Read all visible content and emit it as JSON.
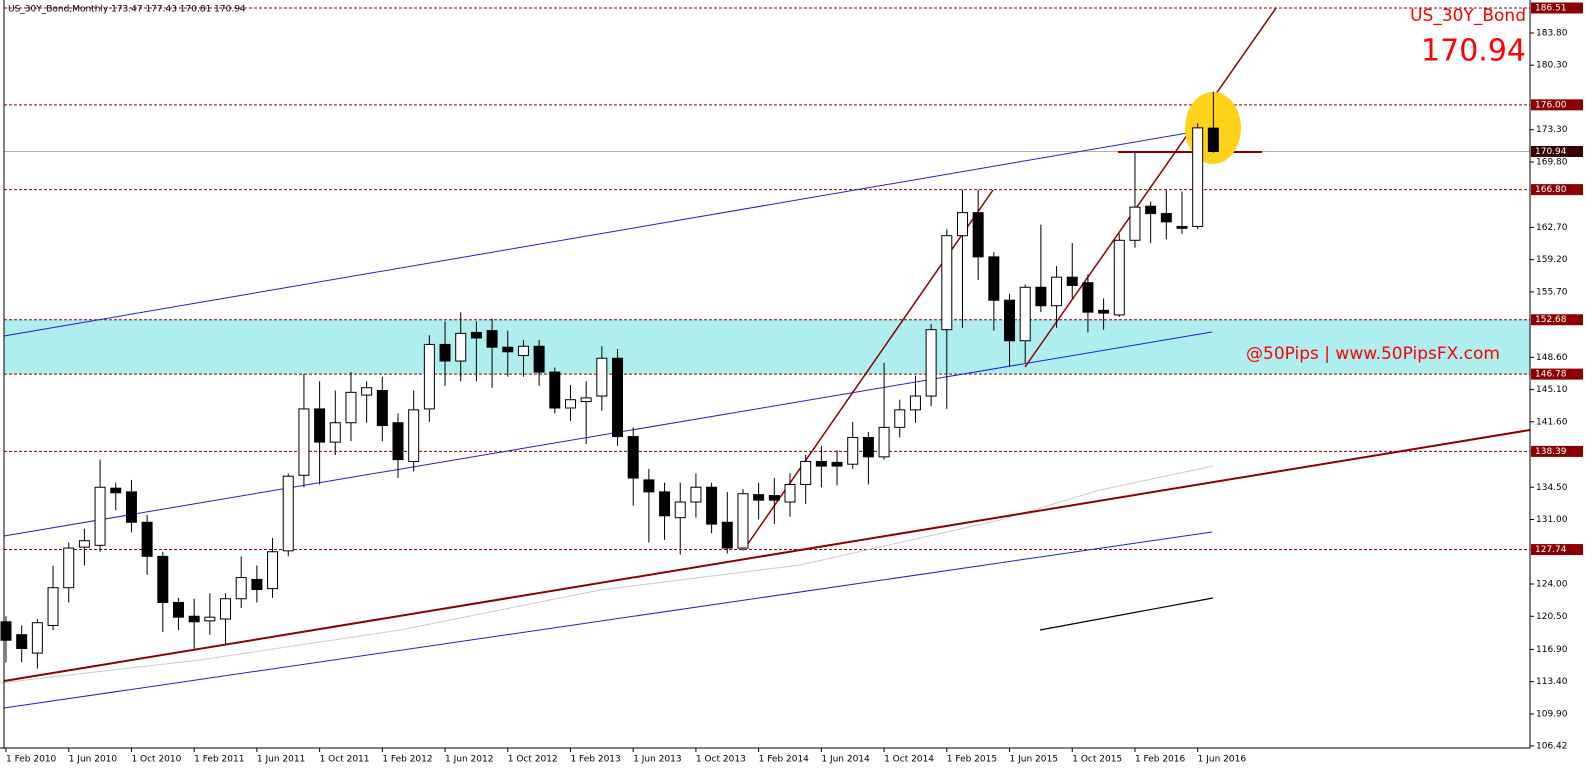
{
  "chart_data": {
    "type": "candlestick",
    "header": "US_30Y_Bond,Monthly  173.47 177.43 170.81 170.94",
    "title": "US_30Y_Bond",
    "last_price": 170.94,
    "annotation": "@50Pips | www.50PipsFX.com",
    "categories": [
      "1 Feb 2010",
      null,
      null,
      null,
      "1 Jun 2010",
      null,
      null,
      null,
      "1 Oct 2010",
      null,
      null,
      null,
      "1 Feb 2011",
      null,
      null,
      null,
      "1 Jun 2011",
      null,
      null,
      null,
      "1 Oct 2011",
      null,
      null,
      null,
      "1 Feb 2012",
      null,
      null,
      null,
      "1 Jun 2012",
      null,
      null,
      null,
      "1 Oct 2012",
      null,
      null,
      null,
      "1 Feb 2013",
      null,
      null,
      null,
      "1 Jun 2013",
      null,
      null,
      null,
      "1 Oct 2013",
      null,
      null,
      null,
      "1 Feb 2014",
      null,
      null,
      null,
      "1 Jun 2014",
      null,
      null,
      null,
      "1 Oct 2014",
      null,
      null,
      null,
      "1 Feb 2015",
      null,
      null,
      null,
      "1 Jun 2015",
      null,
      null,
      null,
      "1 Oct 2015",
      null,
      null,
      null,
      "1 Feb 2016",
      null,
      null,
      null,
      "1 Jun 2016",
      null
    ],
    "open": [
      119.9,
      118.5,
      116.5,
      119.5,
      123.6,
      128,
      128.2,
      134.4,
      134,
      130.7,
      127,
      122,
      120.5,
      120,
      120.2,
      122.4,
      124.5,
      123.5,
      127.6,
      135.8,
      143,
      139.4,
      141.5,
      144.5,
      145,
      141.5,
      137.3,
      143,
      150,
      148.2,
      151.3,
      151.5,
      149.7,
      148.8,
      149.8,
      147,
      143.1,
      143.8,
      144.4,
      148.5,
      140,
      135.3,
      134,
      131.2,
      132.9,
      134.5,
      130.7,
      127.9,
      133.7,
      133.6,
      132.9,
      134.8,
      137.3,
      137.2,
      137,
      139.9,
      137.8,
      141,
      142.9,
      144.4,
      151.6,
      161.8,
      164.3,
      159.5,
      154.8,
      150.4,
      156.2,
      154.2,
      157.3,
      156.7,
      153.7,
      153.2,
      161.3,
      165,
      164.2,
      162.8,
      162.8,
      173.47
    ],
    "high": [
      120.5,
      119.5,
      120.2,
      126,
      128.5,
      130,
      137.5,
      135,
      135.3,
      131.5,
      127.5,
      122.5,
      122.4,
      123,
      123,
      127,
      126,
      129,
      136,
      146.8,
      146,
      145,
      147,
      146,
      146.5,
      142.5,
      145,
      151,
      152.5,
      153.5,
      152.5,
      152.8,
      151.5,
      150.5,
      150.5,
      147.5,
      145.6,
      146,
      149.8,
      149.5,
      141,
      136.5,
      135,
      135,
      136,
      135,
      134,
      134.3,
      135,
      135.5,
      136,
      138,
      139,
      138.5,
      141.6,
      140.5,
      148,
      144,
      146.6,
      152.2,
      162.5,
      166.8,
      166.8,
      160,
      155.5,
      156.5,
      163,
      158.5,
      161,
      157.6,
      155,
      162,
      170.9,
      165.5,
      166.8,
      166.6,
      174,
      177.43
    ],
    "low": [
      115.5,
      115.5,
      114.8,
      119,
      122,
      126,
      127.5,
      132,
      129.6,
      125,
      118.8,
      119,
      117,
      118.5,
      117.5,
      121.4,
      122,
      122.5,
      127,
      134.5,
      134.8,
      138,
      139.5,
      141.5,
      139.5,
      135.5,
      136.2,
      141.6,
      145.5,
      146,
      146,
      145.3,
      146.5,
      146.5,
      145.5,
      142.5,
      141.7,
      139.2,
      142.8,
      139,
      132.5,
      128.5,
      128.8,
      127.2,
      131.2,
      129.5,
      127.3,
      127.6,
      131,
      130.5,
      131.3,
      132.7,
      134.5,
      134.7,
      136.5,
      134.8,
      137.5,
      139.9,
      141.5,
      143.3,
      143,
      151.8,
      157,
      151.5,
      147.6,
      148,
      153.5,
      151.8,
      155,
      151.3,
      151.6,
      153,
      160.5,
      161,
      161.4,
      162,
      162.5,
      170.81
    ],
    "close": [
      117.9,
      117,
      119.8,
      123.6,
      127.9,
      128.7,
      134.5,
      133.9,
      130.7,
      127,
      122,
      120.4,
      119.9,
      120.4,
      122.4,
      124.7,
      123.4,
      127.5,
      135.7,
      143,
      139.4,
      141.5,
      144.8,
      145.3,
      141.2,
      137.5,
      142.9,
      150,
      148.2,
      151.2,
      150.7,
      149.7,
      149.2,
      149.8,
      147,
      143.1,
      144,
      144.2,
      148.5,
      140,
      135.5,
      134,
      131.4,
      132.9,
      134.5,
      130.5,
      127.9,
      133.8,
      133.1,
      133.1,
      134.8,
      137.3,
      136.8,
      136.8,
      139.9,
      137.8,
      141,
      142.9,
      144.4,
      151.6,
      161.8,
      164.3,
      159.5,
      154.8,
      150.4,
      156.2,
      154.2,
      157.3,
      156.4,
      153.5,
      153.4,
      161.3,
      164.9,
      164.2,
      163.3,
      162.6,
      173.5,
      170.94
    ],
    "up_color": "#ffffff",
    "down_color": "#000000",
    "ylim": [
      106.42,
      186.51
    ],
    "yticks": [
      {
        "value": 183.8,
        "label": "183.80"
      },
      {
        "value": 180.3,
        "label": "180.30"
      },
      {
        "value": 173.3,
        "label": "173.30"
      },
      {
        "value": 169.8,
        "label": "169.80"
      },
      {
        "value": 162.7,
        "label": "162.70"
      },
      {
        "value": 159.2,
        "label": "159.20"
      },
      {
        "value": 155.7,
        "label": "155.70"
      },
      {
        "value": 148.6,
        "label": "148.60"
      },
      {
        "value": 145.1,
        "label": "145.10"
      },
      {
        "value": 141.6,
        "label": "141.60"
      },
      {
        "value": 134.5,
        "label": "134.50"
      },
      {
        "value": 131,
        "label": "131.00"
      },
      {
        "value": 124,
        "label": "124.00"
      },
      {
        "value": 120.5,
        "label": "120.50"
      },
      {
        "value": 116.9,
        "label": "116.90"
      },
      {
        "value": 113.4,
        "label": "113.40"
      },
      {
        "value": 109.9,
        "label": "109.90"
      },
      106.42
    ],
    "levels": [
      {
        "value": 186.51,
        "label": "186.51",
        "color": "#8b0000"
      },
      {
        "value": 176,
        "label": "176.00",
        "color": "#8b0000"
      },
      {
        "value": 170.94,
        "label": "170.94",
        "color": "#3a0000"
      },
      {
        "value": 166.8,
        "label": "166.80",
        "color": "#8b0000"
      },
      {
        "value": 152.68,
        "label": "152.68",
        "color": "#8b0000"
      },
      {
        "value": 146.78,
        "label": "146.78",
        "color": "#8b0000"
      },
      {
        "value": 138.39,
        "label": "138.39",
        "color": "#8b0000"
      },
      {
        "value": 127.74,
        "label": "127.74",
        "color": "#8b0000"
      }
    ],
    "zone": {
      "from": 146.78,
      "to": 152.68,
      "color": "#aeeeee"
    }
  }
}
